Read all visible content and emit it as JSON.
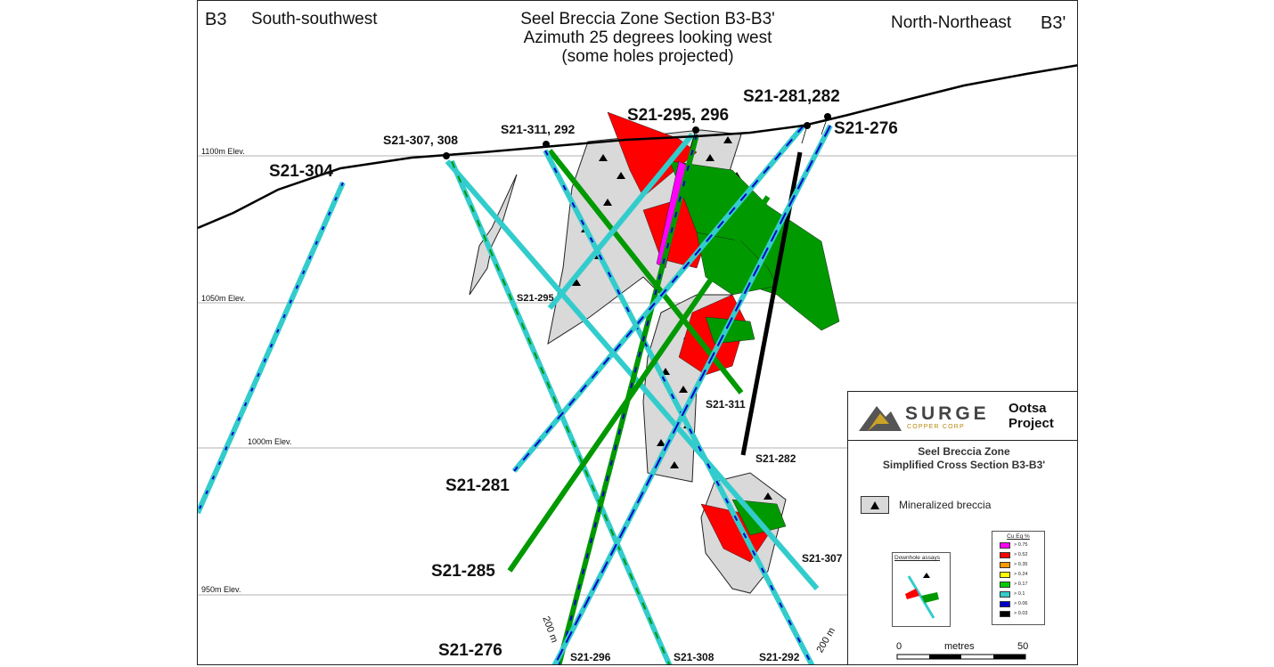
{
  "header": {
    "corner_left": "B3",
    "direction_left": "South-southwest",
    "direction_right": "North-Northeast",
    "corner_right": "B3'",
    "title_lines": [
      "Seel Breccia Zone Section B3-B3'",
      "Azimuth 25 degrees looking west",
      "(some holes projected)"
    ]
  },
  "elevations": [
    "1100m Elev.",
    "1050m Elev.",
    "1000m Elev.",
    "950m Elev."
  ],
  "holes": {
    "collar_labels": [
      "S21-304",
      "S21-307, 308",
      "S21-311, 292",
      "S21-295, 296",
      "S21-281,282",
      "S21-276"
    ],
    "end_labels": [
      "S21-295",
      "S21-311",
      "S21-282",
      "S21-281",
      "S21-307",
      "S21-285",
      "S21-276",
      "S21-296",
      "S21-308",
      "S21-292"
    ],
    "length_labels": [
      "200 m",
      "200 m"
    ]
  },
  "legend": {
    "company": "SURGE",
    "company_sub": "COPPER CORP",
    "project_lines": [
      "Ootsa",
      "Project"
    ],
    "section_title_lines": [
      "Seel Breccia Zone",
      "Simplified Cross Section B3-B3'"
    ],
    "breccia_label": "Mineralized breccia",
    "downhole_label": "Downhole assays",
    "cu_title": "Cu Eq %",
    "cu_classes": [
      {
        "label": "> 0.75",
        "color": "#ff00ff"
      },
      {
        "label": "> 0.52",
        "color": "#ff0000"
      },
      {
        "label": "> 0.35",
        "color": "#ff9900"
      },
      {
        "label": "> 0.24",
        "color": "#ffff00"
      },
      {
        "label": "> 0.17",
        "color": "#00cc00"
      },
      {
        "label": "> 0.1",
        "color": "#33cccc"
      },
      {
        "label": "> 0.06",
        "color": "#0000cc"
      },
      {
        "label": "> 0.03",
        "color": "#000000"
      }
    ],
    "scale": {
      "start": "0",
      "unit": "metres",
      "end": "50"
    }
  },
  "colors": {
    "topography": "#000000",
    "breccia_fill": "#d9d9d9",
    "gridline": "#999999"
  }
}
